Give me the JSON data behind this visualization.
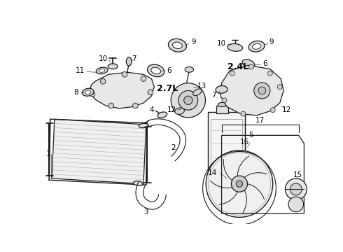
{
  "bg_color": "#ffffff",
  "line_color": "#1a1a1a",
  "figsize": [
    4.9,
    3.6
  ],
  "dpi": 100,
  "font_size_label": 7.5,
  "font_size_engine": 9,
  "font_size_small": 6.5
}
